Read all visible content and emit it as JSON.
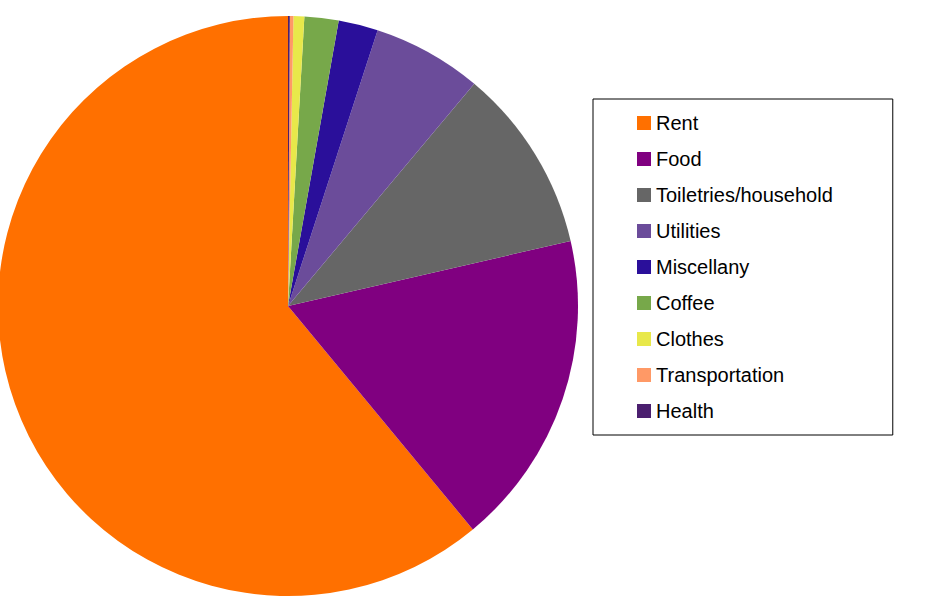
{
  "chart_data": {
    "type": "pie",
    "categories": [
      "Rent",
      "Food",
      "Toiletries/household",
      "Utilities",
      "Miscellany",
      "Coffee",
      "Clothes",
      "Transportation",
      "Health"
    ],
    "values": [
      61,
      17.6,
      10.3,
      6.1,
      2.2,
      1.9,
      0.6,
      0.2,
      0.1
    ],
    "colors": [
      "#ff7000",
      "#800080",
      "#666666",
      "#6b4c9a",
      "#2a0f9a",
      "#77a84a",
      "#e8e84a",
      "#ff9966",
      "#4b1f6f"
    ],
    "legend": "right"
  }
}
